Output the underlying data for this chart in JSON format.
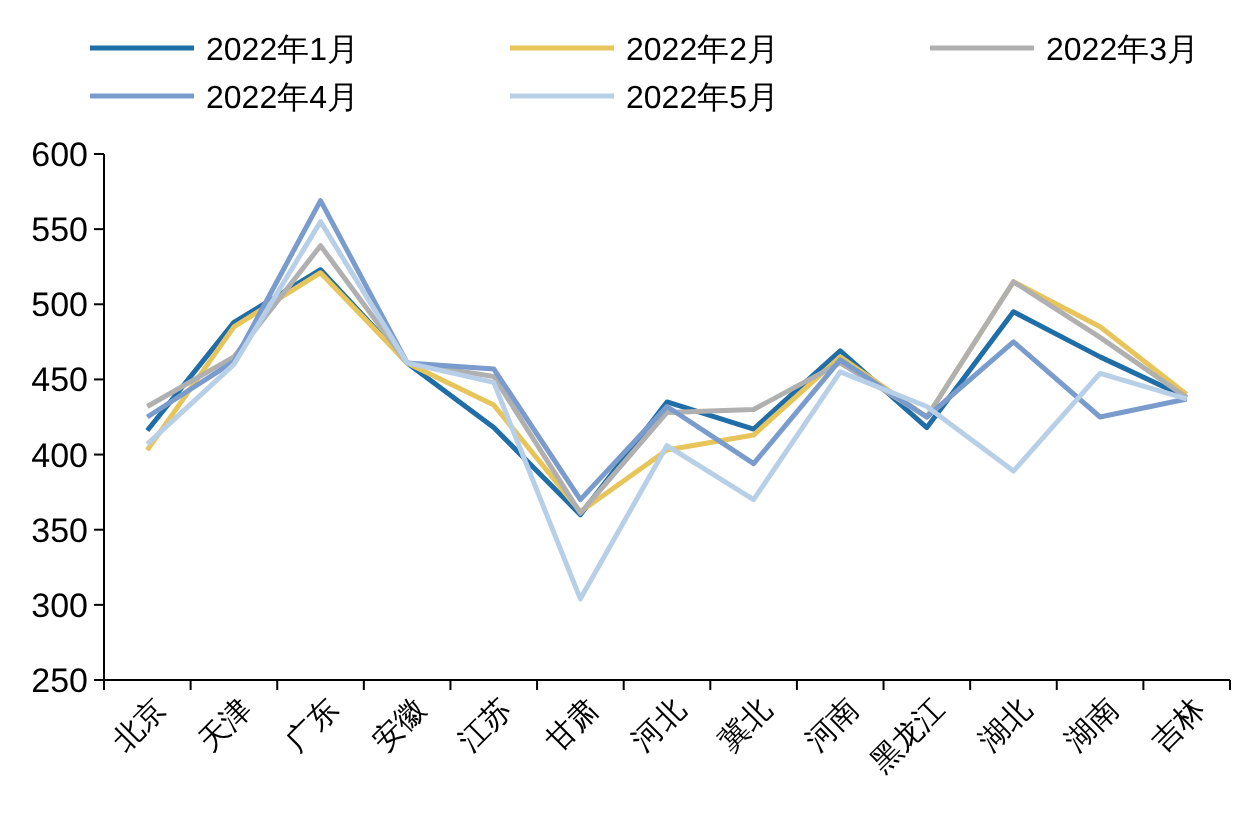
{
  "chart_data": {
    "type": "line",
    "categories": [
      "北京",
      "天津",
      "广东",
      "安徽",
      "江苏",
      "甘肃",
      "河北",
      "冀北",
      "河南",
      "黑龙江",
      "湖北",
      "湖南",
      "吉林"
    ],
    "series": [
      {
        "name": "2022年1月",
        "color": "#1f6ea8",
        "values": [
          416,
          488,
          523,
          461,
          418,
          360,
          435,
          417,
          469,
          418,
          495,
          465,
          438
        ]
      },
      {
        "name": "2022年2月",
        "color": "#e8c55a",
        "values": [
          403,
          485,
          521,
          461,
          433,
          362,
          403,
          413,
          465,
          425,
          515,
          485,
          440
        ]
      },
      {
        "name": "2022年3月",
        "color": "#b0b0b0",
        "values": [
          432,
          465,
          539,
          461,
          452,
          361,
          428,
          430,
          461,
          425,
          515,
          478,
          438
        ]
      },
      {
        "name": "2022年4月",
        "color": "#7a9ccc",
        "values": [
          425,
          462,
          569,
          461,
          457,
          370,
          432,
          394,
          463,
          425,
          475,
          425,
          437
        ]
      },
      {
        "name": "2022年5月",
        "color": "#b8cfe8",
        "values": [
          407,
          460,
          555,
          461,
          448,
          304,
          406,
          370,
          455,
          432,
          389,
          454,
          437
        ]
      }
    ],
    "ylim": [
      250,
      600
    ],
    "yticks": [
      250,
      300,
      350,
      400,
      450,
      500,
      550,
      600
    ],
    "legend": "top",
    "grid": false,
    "marker": "none",
    "line_style": "solid"
  }
}
